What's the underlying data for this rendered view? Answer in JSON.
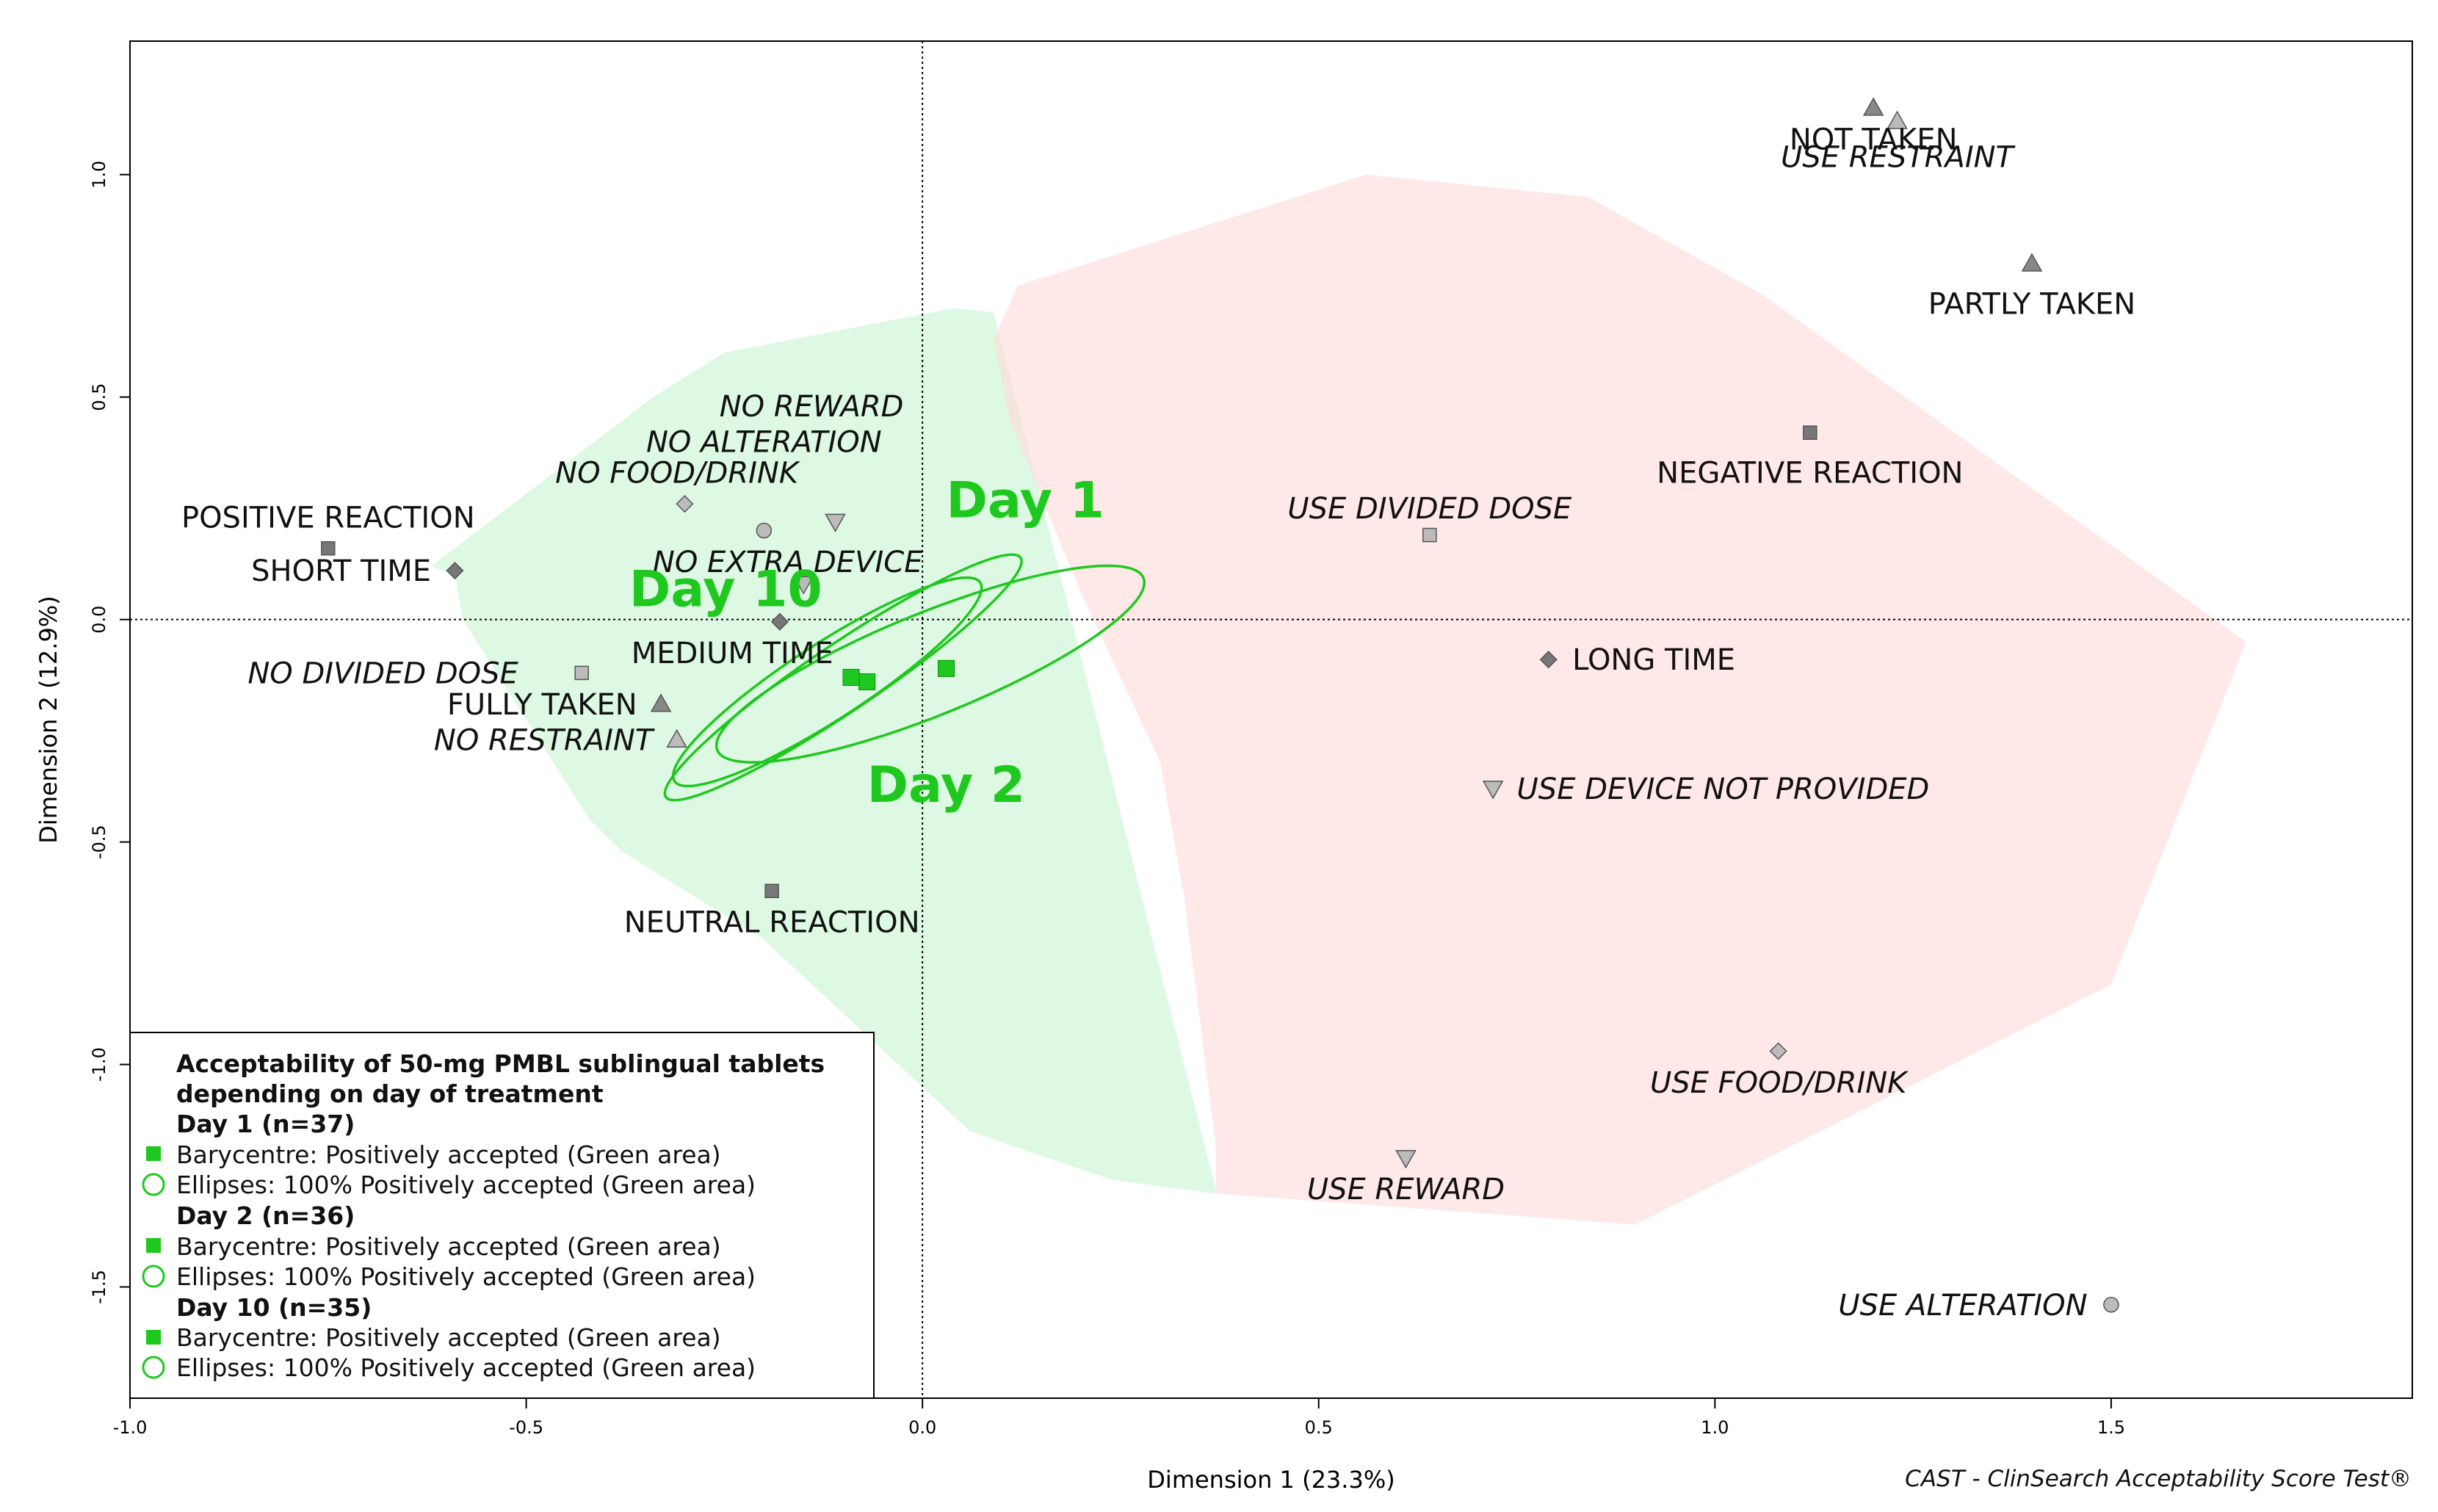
{
  "chart_data": {
    "type": "scatter",
    "xlabel": "Dimension 1 (23.3%)",
    "ylabel": "Dimension 2 (12.9%)",
    "xlim": [
      -1.0,
      1.88
    ],
    "ylim": [
      -1.75,
      1.3
    ],
    "xticks": [
      {
        "value": -1.0,
        "label": "-1.0"
      },
      {
        "value": -0.5,
        "label": "-0.5"
      },
      {
        "value": 0.0,
        "label": "0.0"
      },
      {
        "value": 0.5,
        "label": "0.5"
      },
      {
        "value": 1.0,
        "label": "1.0"
      },
      {
        "value": 1.5,
        "label": "1.5"
      }
    ],
    "yticks": [
      {
        "value": 1.0,
        "label": "1.0"
      },
      {
        "value": 0.5,
        "label": "0.5"
      },
      {
        "value": 0.0,
        "label": "0.0"
      },
      {
        "value": -0.5,
        "label": "-0.5"
      },
      {
        "value": -1.0,
        "label": "-1.0"
      },
      {
        "value": -1.5,
        "label": "-1.5"
      }
    ],
    "reference_lines": {
      "x": 0,
      "y": 0
    },
    "areas": [
      {
        "name": "green-area",
        "color": "#c8f5d0",
        "points": [
          [
            -0.62,
            0.12
          ],
          [
            -0.59,
            0.1
          ],
          [
            -0.58,
            0.0
          ],
          [
            -0.42,
            -0.45
          ],
          [
            -0.38,
            -0.52
          ],
          [
            -0.2,
            -0.72
          ],
          [
            0.06,
            -1.15
          ],
          [
            0.24,
            -1.26
          ],
          [
            0.37,
            -1.29
          ],
          [
            0.37,
            -1.28
          ],
          [
            0.09,
            0.69
          ],
          [
            0.04,
            0.7
          ],
          [
            -0.25,
            0.6
          ],
          [
            -0.34,
            0.5
          ]
        ]
      },
      {
        "name": "pink-area",
        "color": "#ffd8d8",
        "points": [
          [
            0.12,
            0.75
          ],
          [
            0.09,
            0.63
          ],
          [
            0.11,
            0.45
          ],
          [
            0.2,
            0.06
          ],
          [
            0.3,
            -0.32
          ],
          [
            0.33,
            -0.62
          ],
          [
            0.37,
            -1.18
          ],
          [
            0.37,
            -1.29
          ],
          [
            0.9,
            -1.36
          ],
          [
            1.5,
            -0.82
          ],
          [
            1.67,
            -0.05
          ],
          [
            1.06,
            0.73
          ],
          [
            0.84,
            0.95
          ],
          [
            0.56,
            1.0
          ]
        ]
      }
    ],
    "points": [
      {
        "label": "NOT TAKEN",
        "x": 1.2,
        "y": 1.15,
        "marker": "triangle",
        "fill": "#888888",
        "italic": false,
        "anchor": "middle",
        "dx": 0,
        "dy": -0.07
      },
      {
        "label": "USE RESTRAINT",
        "x": 1.23,
        "y": 1.12,
        "marker": "triangle",
        "fill": "#bbbbbb",
        "italic": true,
        "anchor": "middle",
        "dx": 0,
        "dy": -0.08
      },
      {
        "label": "PARTLY TAKEN",
        "x": 1.4,
        "y": 0.8,
        "marker": "triangle",
        "fill": "#888888",
        "italic": false,
        "anchor": "middle",
        "dx": 0,
        "dy": -0.09
      },
      {
        "label": "NEGATIVE REACTION",
        "x": 1.12,
        "y": 0.42,
        "marker": "square",
        "fill": "#777777",
        "italic": false,
        "anchor": "middle",
        "dx": 0,
        "dy": -0.09
      },
      {
        "label": "USE DIVIDED DOSE",
        "x": 0.64,
        "y": 0.19,
        "marker": "square",
        "fill": "#bbbbbb",
        "italic": true,
        "anchor": "middle",
        "dx": 0,
        "dy": 0.06
      },
      {
        "label": "LONG TIME",
        "x": 0.79,
        "y": -0.09,
        "marker": "diamond",
        "fill": "#777777",
        "italic": false,
        "anchor": "start",
        "dx": 0.03,
        "dy": 0
      },
      {
        "label": "USE DEVICE NOT PROVIDED",
        "x": 0.72,
        "y": -0.38,
        "marker": "triangle-down",
        "fill": "#bbbbbb",
        "italic": true,
        "anchor": "start",
        "dx": 0.03,
        "dy": 0
      },
      {
        "label": "USE FOOD/DRINK",
        "x": 1.08,
        "y": -0.97,
        "marker": "diamond",
        "fill": "#bbbbbb",
        "italic": true,
        "anchor": "middle",
        "dx": 0,
        "dy": -0.07
      },
      {
        "label": "USE REWARD",
        "x": 0.61,
        "y": -1.21,
        "marker": "triangle-down",
        "fill": "#bbbbbb",
        "italic": true,
        "anchor": "middle",
        "dx": 0,
        "dy": -0.07
      },
      {
        "label": "USE ALTERATION",
        "x": 1.5,
        "y": -1.54,
        "marker": "circle",
        "fill": "#bbbbbb",
        "italic": true,
        "anchor": "end",
        "dx": -0.03,
        "dy": 0
      },
      {
        "label": "NO REWARD",
        "x": -0.11,
        "y": 0.22,
        "marker": "triangle-down",
        "fill": "#bbbbbb",
        "italic": true,
        "anchor": "middle",
        "dx": -0.03,
        "dy": 0.26
      },
      {
        "label": "NO ALTERATION",
        "x": -0.2,
        "y": 0.2,
        "marker": "circle",
        "fill": "#bbbbbb",
        "italic": true,
        "anchor": "middle",
        "dx": 0,
        "dy": 0.2
      },
      {
        "label": "NO FOOD/DRINK",
        "x": -0.3,
        "y": 0.26,
        "marker": "diamond",
        "fill": "#bbbbbb",
        "italic": true,
        "anchor": "middle",
        "dx": -0.01,
        "dy": 0.07
      },
      {
        "label": "POSITIVE REACTION",
        "x": -0.75,
        "y": 0.16,
        "marker": "square",
        "fill": "#777777",
        "italic": false,
        "anchor": "middle",
        "dx": 0,
        "dy": 0.07
      },
      {
        "label": "SHORT TIME",
        "x": -0.59,
        "y": 0.11,
        "marker": "diamond",
        "fill": "#777777",
        "italic": false,
        "anchor": "end",
        "dx": -0.03,
        "dy": 0
      },
      {
        "label": "NO EXTRA DEVICE",
        "x": -0.15,
        "y": 0.08,
        "marker": "triangle-down",
        "fill": "#bbbbbb",
        "italic": true,
        "anchor": "middle",
        "dx": -0.02,
        "dy": 0.05
      },
      {
        "label": "MEDIUM TIME",
        "x": -0.18,
        "y": -0.005,
        "marker": "diamond",
        "fill": "#777777",
        "italic": false,
        "anchor": "middle",
        "dx": -0.06,
        "dy": -0.07
      },
      {
        "label": "NO DIVIDED DOSE",
        "x": -0.43,
        "y": -0.12,
        "marker": "square",
        "fill": "#bbbbbb",
        "italic": true,
        "anchor": "end",
        "dx": -0.08,
        "dy": 0
      },
      {
        "label": "FULLY TAKEN",
        "x": -0.33,
        "y": -0.19,
        "marker": "triangle",
        "fill": "#888888",
        "italic": false,
        "anchor": "end",
        "dx": -0.03,
        "dy": 0
      },
      {
        "label": "NO RESTRAINT",
        "x": -0.31,
        "y": -0.27,
        "marker": "triangle",
        "fill": "#bbbbbb",
        "italic": true,
        "anchor": "end",
        "dx": -0.03,
        "dy": 0
      },
      {
        "label": "NEUTRAL REACTION",
        "x": -0.19,
        "y": -0.61,
        "marker": "square",
        "fill": "#777777",
        "italic": false,
        "anchor": "middle",
        "dx": 0,
        "dy": -0.07
      }
    ],
    "barycentres": [
      {
        "name": "Day 1",
        "x": 0.03,
        "y": -0.11
      },
      {
        "name": "Day 2",
        "x": -0.07,
        "y": -0.14
      },
      {
        "name": "Day 10",
        "x": -0.09,
        "y": -0.13
      }
    ],
    "ellipses": [
      {
        "name": "Day 1",
        "cx": 0.01,
        "cy": -0.1,
        "rx": 0.29,
        "ry": 0.115,
        "angle": -22
      },
      {
        "name": "Day 2",
        "cx": -0.1,
        "cy": -0.13,
        "rx": 0.27,
        "ry": 0.075,
        "angle": -34
      },
      {
        "name": "Day 10",
        "cx": -0.12,
        "cy": -0.14,
        "rx": 0.23,
        "ry": 0.085,
        "angle": -33
      }
    ],
    "day_labels": [
      {
        "text": "Day 1",
        "x": 0.03,
        "y": 0.23
      },
      {
        "text": "Day 10",
        "x": -0.37,
        "y": 0.03
      },
      {
        "text": "Day 2",
        "x": -0.07,
        "y": -0.41
      }
    ],
    "accent_color": "#1ec81e",
    "legend": {
      "title_line1": "Acceptability of 50-mg PMBL sublingual tablets",
      "title_line2": "depending on day of treatment",
      "groups": [
        {
          "header": "Day 1 (n=37)",
          "barycentre": "Barycentre: Positively accepted (Green area)",
          "ellipse": "Ellipses: 100% Positively accepted (Green area)"
        },
        {
          "header": "Day 2 (n=36)",
          "barycentre": "Barycentre: Positively accepted (Green area)",
          "ellipse": "Ellipses: 100% Positively accepted (Green area)"
        },
        {
          "header": "Day 10 (n=35)",
          "barycentre": "Barycentre: Positively accepted (Green area)",
          "ellipse": "Ellipses: 100% Positively accepted (Green area)"
        }
      ]
    },
    "footer": "CAST - ClinSearch Acceptability Score Test®"
  }
}
